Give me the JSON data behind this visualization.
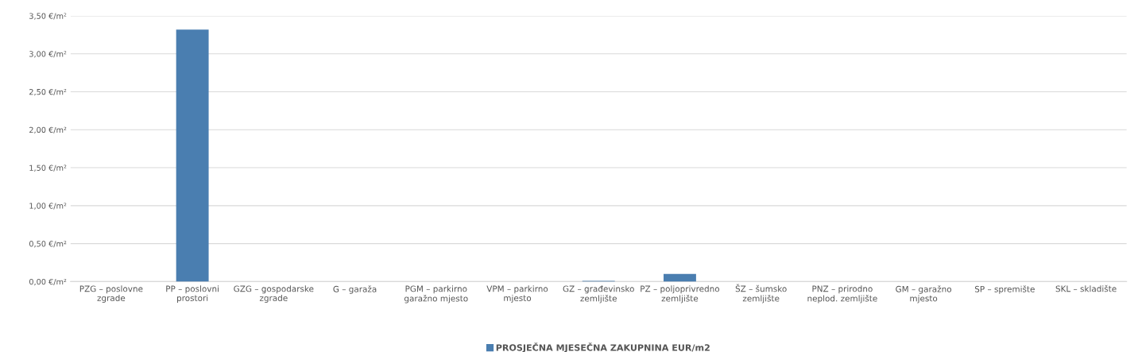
{
  "chart_data": {
    "type": "bar",
    "categories": [
      "PZG – poslovne\nzgrade",
      "PP – poslovni\nprostori",
      "GZG – gospodarske\nzgrade",
      "G – garaža",
      "PGM – parkirno\ngaražno mjesto",
      "VPM – parkirno\nmjesto",
      "GZ – građevinsko\nzemljište",
      "PZ – poljoprivredno\nzemljište",
      "ŠZ – šumsko\nzemljište",
      "PNZ – prirodno\nneplod. zemljište",
      "GM – garažno\nmjesto",
      "SP – spremište",
      "SKL – skladište"
    ],
    "series": [
      {
        "name": "PROSJEČNA MJESEČNA ZAKUPNINA EUR/m2",
        "color": "#4a7eb0",
        "values": [
          null,
          3.32,
          null,
          null,
          null,
          null,
          0.01,
          0.1,
          null,
          null,
          null,
          null,
          null
        ]
      }
    ],
    "ylim": [
      0,
      3.5
    ],
    "yticks": [
      {
        "value": 0,
        "label": "0,00 €/m²"
      },
      {
        "value": 0.5,
        "label": "0,50 €/m²"
      },
      {
        "value": 1,
        "label": "1,00 €/m²"
      },
      {
        "value": 1.5,
        "label": "1,50 €/m²"
      },
      {
        "value": 2,
        "label": "2,00 €/m²"
      },
      {
        "value": 2.5,
        "label": "2,50 €/m²"
      },
      {
        "value": 3,
        "label": "3,00 €/m²"
      },
      {
        "value": 3.5,
        "label": "3,50 €/m²"
      }
    ],
    "grid": "y",
    "legend": "bottom"
  }
}
